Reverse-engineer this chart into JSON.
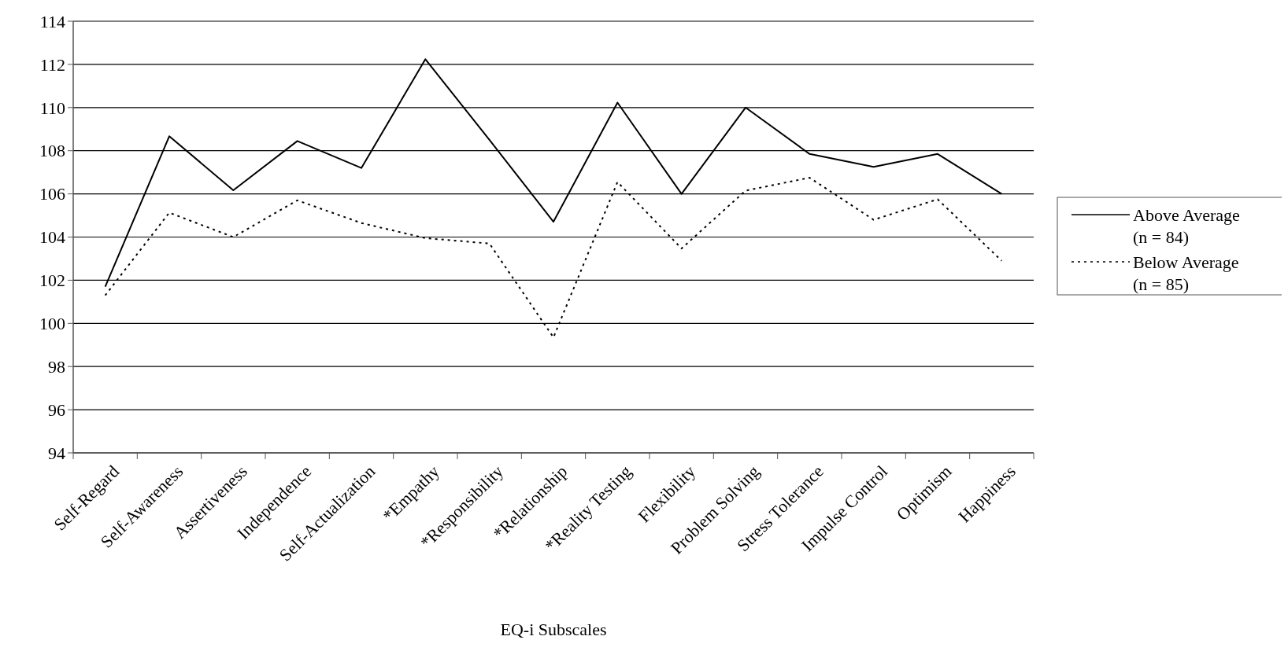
{
  "chart_data": {
    "type": "line",
    "xlabel": "EQ-i Subscales",
    "categories": [
      "Self-Regard",
      "Self-Awareness",
      "Assertiveness",
      "Independence",
      "Self-Actualization",
      "*Empathy",
      "*Responsibility",
      "*Relationship",
      "*Reality Testing",
      "Flexibility",
      "Problem Solving",
      "Stress Tolerance",
      "Impulse Control",
      "Optimism",
      "Happiness"
    ],
    "series": [
      {
        "name": "Above Average\n(n = 84)",
        "color": "#000000",
        "line_style": "solid",
        "values": [
          101.7,
          108.67,
          106.17,
          108.45,
          107.2,
          112.24,
          108.5,
          104.71,
          110.23,
          106.0,
          110.0,
          107.85,
          107.25,
          107.85,
          106.0
        ]
      },
      {
        "name": "Below Average\n(n = 85)",
        "color": "#000000",
        "line_style": "dotted",
        "values": [
          101.3,
          105.13,
          104.0,
          105.7,
          104.65,
          103.95,
          103.7,
          99.35,
          106.55,
          103.47,
          106.15,
          106.75,
          104.8,
          105.75,
          102.9
        ]
      }
    ],
    "ylim": [
      94,
      114
    ],
    "yticks": [
      94,
      96,
      98,
      100,
      102,
      104,
      106,
      108,
      110,
      112,
      114
    ],
    "grid": "y",
    "legend": "right",
    "marker": "none"
  }
}
